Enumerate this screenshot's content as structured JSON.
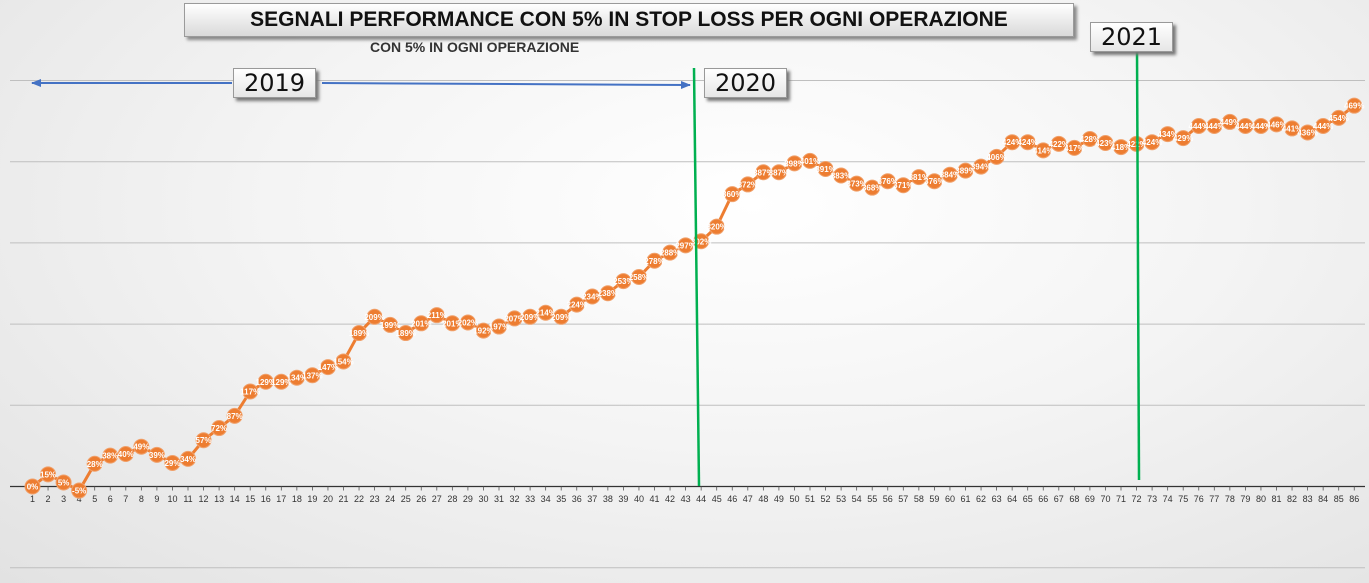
{
  "title": "SEGNALI PERFORMANCE CON 5% IN STOP LOSS PER OGNI OPERAZIONE",
  "subtitle": "CON 5% IN OGNI OPERAZIONE",
  "year_labels": [
    "2019",
    "2020",
    "2021"
  ],
  "colors": {
    "series": "#ED7D31",
    "marker_edge": "#F0A06A",
    "divider": "#00B050",
    "arrow": "#4472C4",
    "grid": "#bfbfbf"
  },
  "chart_data": {
    "type": "line",
    "title": "SEGNALI PERFORMANCE CON 5% IN STOP LOSS PER OGNI OPERAZIONE",
    "xlabel": "",
    "ylabel": "",
    "grid": true,
    "x": [
      1,
      2,
      3,
      4,
      5,
      6,
      7,
      8,
      9,
      10,
      11,
      12,
      13,
      14,
      15,
      16,
      17,
      18,
      19,
      20,
      21,
      22,
      23,
      24,
      25,
      26,
      27,
      28,
      29,
      30,
      31,
      32,
      33,
      34,
      35,
      36,
      37,
      38,
      39,
      40,
      41,
      42,
      43,
      44,
      45,
      46,
      47,
      48,
      49,
      50,
      51,
      52,
      53,
      54,
      55,
      56,
      57,
      58,
      59,
      60,
      61,
      62,
      63,
      64,
      65,
      66,
      67,
      68,
      69,
      70,
      71,
      72,
      73,
      74,
      75,
      76,
      77,
      78,
      79,
      80,
      81,
      82,
      83,
      84,
      85,
      86
    ],
    "values": [
      0,
      15,
      5,
      -5,
      28,
      38,
      40,
      49,
      39,
      29,
      34,
      57,
      72,
      87,
      117,
      129,
      129,
      134,
      137,
      147,
      154,
      189,
      209,
      199,
      189,
      201,
      211,
      201,
      202,
      192,
      197,
      207,
      209,
      214,
      209,
      224,
      234,
      238,
      253,
      258,
      278,
      288,
      297,
      302,
      320,
      360,
      372,
      387,
      387,
      398,
      401,
      391,
      383,
      373,
      368,
      376,
      371,
      381,
      376,
      384,
      389,
      394,
      406,
      424,
      424,
      414,
      422,
      417,
      428,
      423,
      418,
      422,
      424,
      434,
      429,
      444,
      444,
      449,
      444,
      444,
      446,
      441,
      436,
      444,
      454,
      469
    ],
    "labels": [
      "0%",
      "15%",
      "5%",
      "-5%",
      "28%",
      "38%",
      "40%",
      "49%",
      "39%",
      "29%",
      "34%",
      "57%",
      "72%",
      "87%",
      "117%",
      "129%",
      "129%",
      "134%",
      "137%",
      "147%",
      "154%",
      "189%",
      "209%",
      "199%",
      "189%",
      "201%",
      "211%",
      "201%",
      "202%",
      "192%",
      "197%",
      "207%",
      "209%",
      "214%",
      "209%",
      "224%",
      "234%",
      "238%",
      "253%",
      "258%",
      "278%",
      "288%",
      "297%",
      "302%",
      "320%",
      "360%",
      "372%",
      "387%",
      "387%",
      "398%",
      "401%",
      "391%",
      "383%",
      "373%",
      "368%",
      "376%",
      "371%",
      "381%",
      "376%",
      "384%",
      "389%",
      "394%",
      "406%",
      "424%",
      "424%",
      "414%",
      "422%",
      "417%",
      "428%",
      "423%",
      "418%",
      "422%",
      "424%",
      "434%",
      "429%",
      "444%",
      "444%",
      "449%",
      "444%",
      "444%",
      "446%",
      "441%",
      "436%",
      "444%",
      "454%",
      "469%"
    ],
    "ylim": [
      -100,
      500
    ],
    "year_dividers": [
      {
        "year": "2020",
        "after_x": 44
      },
      {
        "year": "2021",
        "after_x": 72
      }
    ]
  }
}
